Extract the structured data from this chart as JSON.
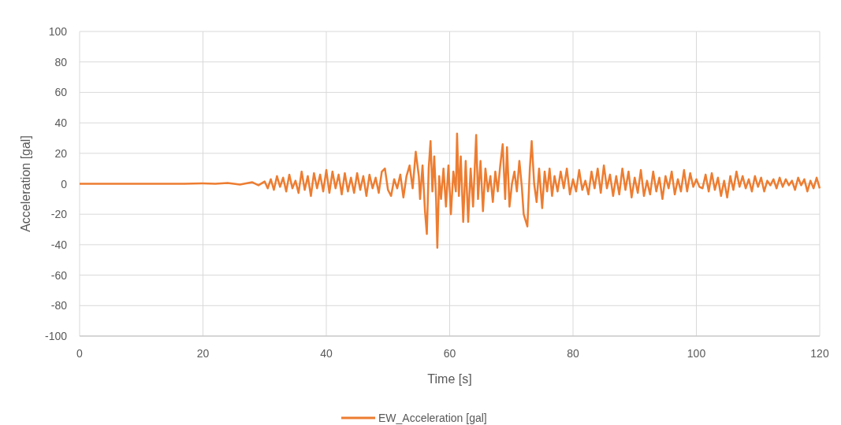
{
  "chart_data": {
    "type": "line",
    "xlabel": "Time [s]",
    "ylabel": "Acceleration [gal]",
    "xlim": [
      0,
      120
    ],
    "ylim": [
      -100,
      100
    ],
    "xticks": [
      0,
      20,
      40,
      60,
      80,
      100,
      120
    ],
    "yticks": [
      -100,
      -80,
      -60,
      -40,
      -20,
      0,
      20,
      40,
      60,
      80,
      100
    ],
    "grid": true,
    "legend": "bottom",
    "marker": "none",
    "line_style": "solid",
    "x": [
      0,
      10,
      17,
      20,
      22,
      24,
      26,
      28,
      29,
      30,
      30.5,
      31,
      31.5,
      32,
      32.5,
      33,
      33.5,
      34,
      34.5,
      35,
      35.5,
      36,
      36.5,
      37,
      37.5,
      38,
      38.5,
      39,
      39.5,
      40,
      40.5,
      41,
      41.5,
      42,
      42.5,
      43,
      43.5,
      44,
      44.5,
      45,
      45.5,
      46,
      46.5,
      47,
      47.5,
      48,
      48.5,
      49,
      49.5,
      50,
      50.5,
      51,
      51.5,
      52,
      52.5,
      53,
      53.5,
      54,
      54.5,
      55,
      55.2,
      55.6,
      56,
      56.3,
      56.6,
      56.9,
      57.2,
      57.5,
      57.8,
      58,
      58.3,
      58.6,
      59,
      59.4,
      59.8,
      60.2,
      60.6,
      61,
      61.2,
      61.5,
      61.8,
      62.2,
      62.6,
      63,
      63.4,
      63.8,
      64.3,
      64.6,
      65,
      65.4,
      65.8,
      66.2,
      66.6,
      67,
      67.4,
      67.8,
      68.2,
      68.6,
      69,
      69.3,
      69.7,
      70.1,
      70.5,
      70.9,
      71.3,
      71.7,
      72,
      72.6,
      73,
      73.3,
      73.7,
      74.1,
      74.5,
      75,
      75.4,
      75.8,
      76.2,
      76.6,
      77,
      77.5,
      78,
      78.5,
      79,
      79.5,
      80,
      80.5,
      81,
      81.5,
      82,
      82.5,
      83,
      83.5,
      84,
      84.5,
      85,
      85.5,
      86,
      86.5,
      87,
      87.5,
      88,
      88.5,
      89,
      89.5,
      90,
      90.5,
      91,
      91.5,
      92,
      92.5,
      93,
      93.5,
      94,
      94.5,
      95,
      95.5,
      96,
      96.5,
      97,
      97.5,
      98,
      98.5,
      99,
      99.5,
      100,
      100.5,
      101,
      101.5,
      102,
      102.5,
      103,
      103.5,
      104,
      104.5,
      105,
      105.5,
      106,
      106.5,
      107,
      107.5,
      108,
      108.5,
      109,
      109.5,
      110,
      110.5,
      111,
      111.5,
      112,
      112.5,
      113,
      113.5,
      114,
      114.5,
      115,
      115.5,
      116,
      116.5,
      117,
      117.5,
      118,
      118.5,
      119,
      119.5,
      120
    ],
    "series": [
      {
        "name": "EW_Acceleration [gal]",
        "color": "#ed7d31",
        "values": [
          0,
          0,
          0,
          0.3,
          0,
          0.5,
          -0.5,
          1,
          -1,
          1.5,
          -3,
          3,
          -4,
          5,
          -2,
          4,
          -5,
          6,
          -3,
          2,
          -6,
          8,
          -4,
          5,
          -8,
          7,
          -3,
          6,
          -5,
          9,
          -6,
          8,
          -3,
          6,
          -7,
          7,
          -5,
          4,
          -6,
          7,
          -4,
          5,
          -8,
          6,
          -3,
          4,
          -6,
          8,
          10,
          -4,
          -8,
          3,
          -3,
          6,
          -9,
          5,
          12,
          -3,
          21,
          5,
          -10,
          12,
          -18,
          -33,
          10,
          28,
          -5,
          18,
          -10,
          -42,
          5,
          -10,
          10,
          -15,
          12,
          -20,
          8,
          -5,
          33,
          -8,
          18,
          -25,
          15,
          -25,
          10,
          -15,
          32,
          -10,
          15,
          -18,
          10,
          -5,
          5,
          -12,
          8,
          -5,
          12,
          26,
          -10,
          24,
          -15,
          0,
          8,
          -5,
          15,
          -2,
          -20,
          -28,
          10,
          28,
          0,
          -12,
          10,
          -16,
          8,
          -5,
          10,
          -8,
          5,
          -5,
          8,
          -3,
          10,
          -7,
          3,
          -5,
          9,
          -4,
          2,
          -7,
          8,
          -3,
          10,
          -6,
          12,
          -3,
          6,
          -8,
          5,
          -7,
          10,
          -4,
          8,
          -9,
          4,
          -6,
          9,
          -8,
          2,
          -7,
          8,
          -5,
          4,
          -10,
          5,
          -3,
          8,
          -7,
          3,
          -5,
          9,
          -5,
          7,
          -2,
          3,
          -2,
          -3,
          6,
          -5,
          7,
          -4,
          4,
          -8,
          2,
          -9,
          5,
          -4,
          8,
          -2,
          5,
          -3,
          3,
          -5,
          5,
          -2,
          4,
          -5,
          2,
          -1,
          3,
          -3,
          4,
          -2,
          3,
          -1,
          2,
          -4,
          4,
          -1,
          3,
          -5,
          2,
          -3,
          4,
          -3
        ]
      }
    ]
  }
}
